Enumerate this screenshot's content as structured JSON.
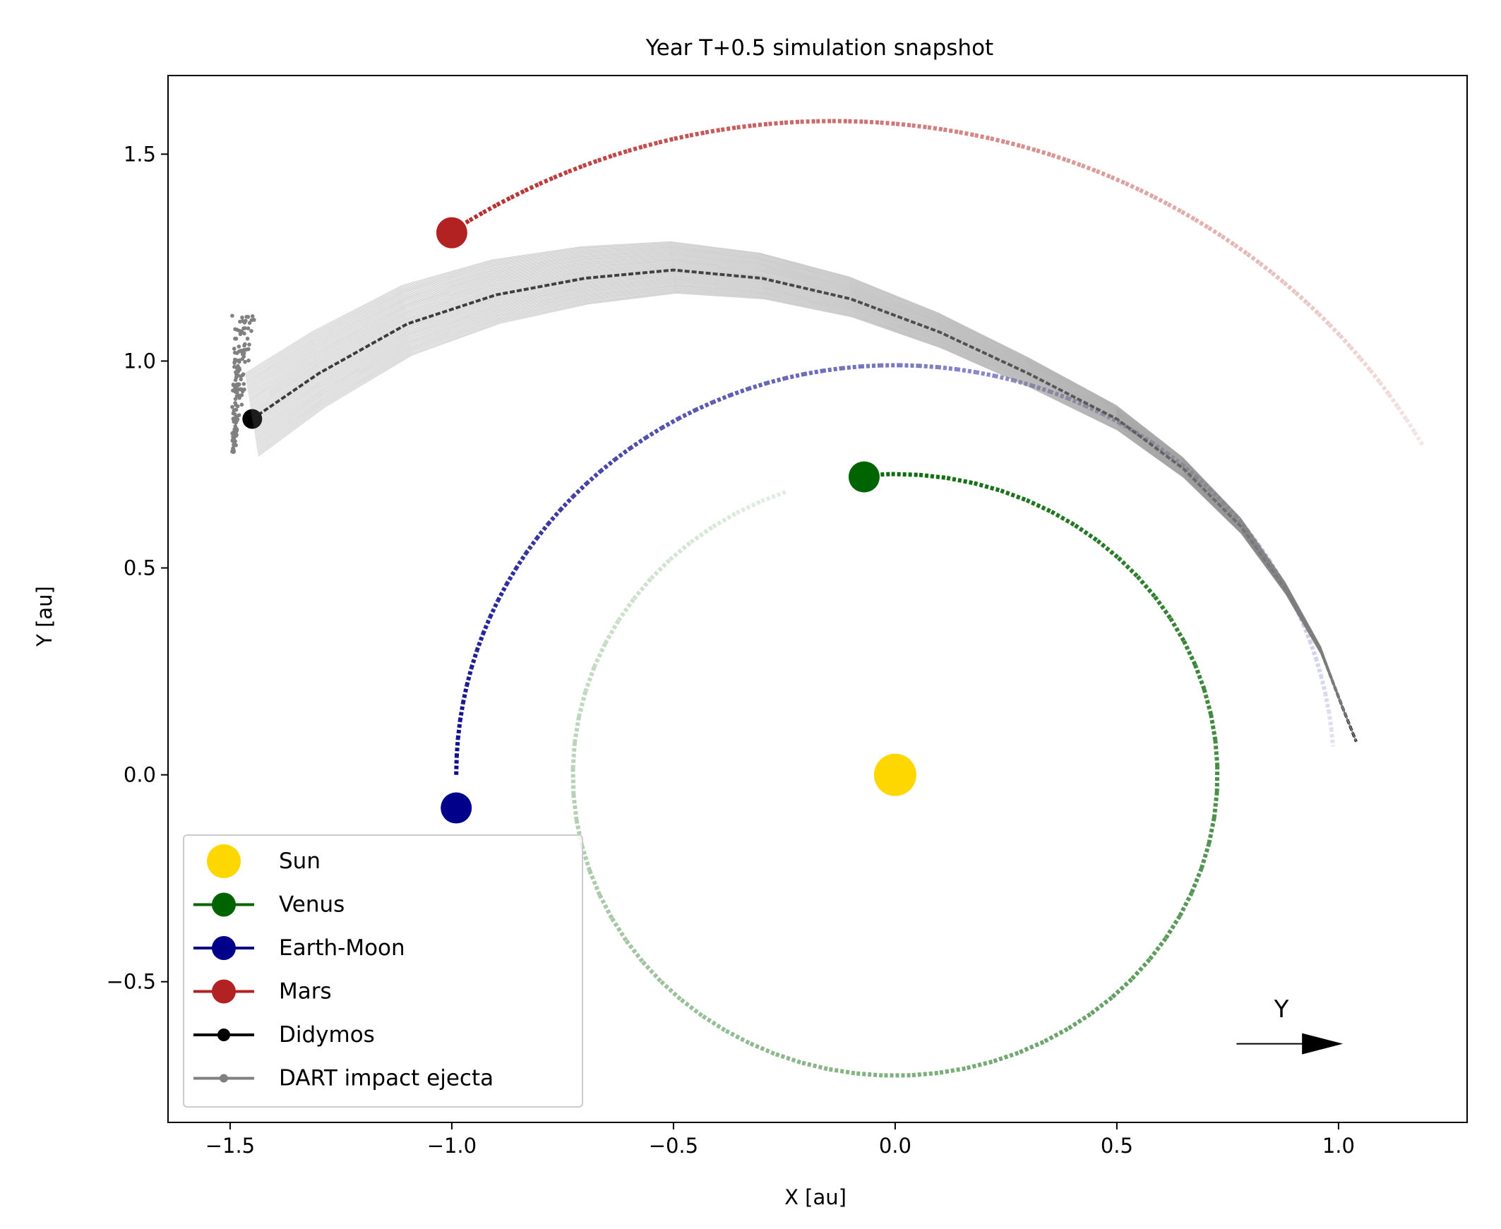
{
  "chart_data": {
    "type": "line",
    "title": "Year T+0.5 simulation snapshot",
    "xlabel": "X [au]",
    "ylabel": "Y [au]",
    "xlim": [
      -1.64,
      1.29
    ],
    "ylim": [
      -0.84,
      1.69
    ],
    "xticks": [
      -1.5,
      -1.0,
      -0.5,
      0.0,
      0.5,
      1.0
    ],
    "yticks": [
      -0.5,
      0.0,
      0.5,
      1.0,
      1.5
    ],
    "xtick_labels": [
      "−1.5",
      "−1.0",
      "−0.5",
      "0.0",
      "0.5",
      "1.0"
    ],
    "ytick_labels": [
      "−0.5",
      "0.0",
      "0.5",
      "1.0",
      "1.5"
    ],
    "grid": false,
    "legend_position": "lower-left",
    "series": [
      {
        "name": "Sun",
        "color": "#FFD700",
        "marker": "large-circle",
        "position": [
          0.0,
          0.0
        ]
      },
      {
        "name": "Venus",
        "color": "#006400",
        "marker": "circle",
        "position": [
          -0.07,
          0.72
        ],
        "orbit": {
          "center": [
            0.0,
            0.0
          ],
          "radius": 0.727,
          "start_angle_deg": 95.6,
          "sweep_deg": -346
        }
      },
      {
        "name": "Earth-Moon",
        "color": "#00008B",
        "marker": "circle",
        "position": [
          -0.99,
          -0.08
        ],
        "orbit": {
          "center": [
            0.0,
            0.0
          ],
          "radius": 0.99,
          "start_angle_deg": 180,
          "sweep_deg": -176
        }
      },
      {
        "name": "Mars",
        "color": "#B22222",
        "marker": "circle",
        "position": [
          -1.0,
          1.31
        ],
        "orbit": {
          "center": [
            -0.14,
            0.06
          ],
          "radius": 1.52,
          "start_angle_deg": 124,
          "sweep_deg": -95
        }
      },
      {
        "name": "Didymos",
        "color": "#000000",
        "marker": "small-circle",
        "position": [
          -1.45,
          0.86
        ],
        "track": [
          [
            -1.45,
            0.86
          ],
          [
            -1.3,
            0.97
          ],
          [
            -1.1,
            1.09
          ],
          [
            -0.9,
            1.16
          ],
          [
            -0.7,
            1.2
          ],
          [
            -0.5,
            1.22
          ],
          [
            -0.3,
            1.2
          ],
          [
            -0.1,
            1.15
          ],
          [
            0.1,
            1.07
          ],
          [
            0.3,
            0.97
          ],
          [
            0.5,
            0.86
          ],
          [
            0.65,
            0.74
          ],
          [
            0.78,
            0.6
          ],
          [
            0.88,
            0.45
          ],
          [
            0.96,
            0.3
          ],
          [
            1.01,
            0.16
          ],
          [
            1.04,
            0.08
          ]
        ]
      },
      {
        "name": "DART impact ejecta",
        "color": "#808080",
        "marker": "tiny-circle",
        "cloud_x_range": [
          -1.51,
          -1.44
        ],
        "cloud_y_range": [
          0.78,
          1.11
        ]
      }
    ],
    "annotation": {
      "label": "Y",
      "arrow_from": [
        0.77,
        -0.65
      ],
      "arrow_to": [
        1.01,
        -0.65
      ]
    }
  }
}
